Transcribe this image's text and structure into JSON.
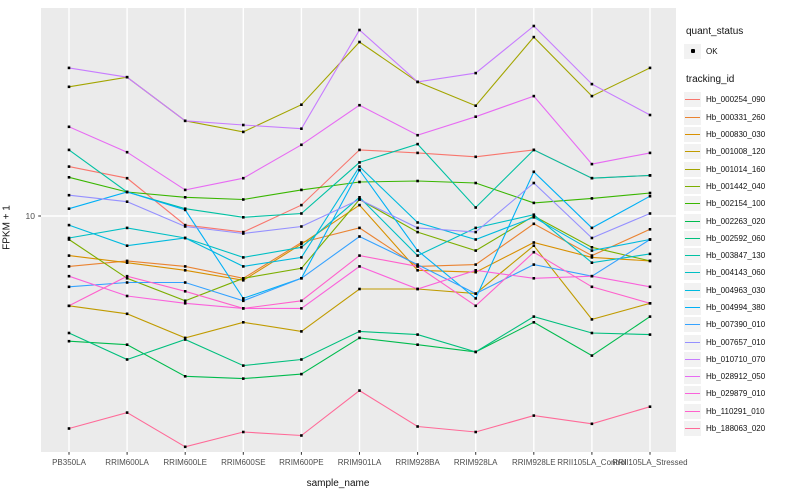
{
  "figure": {
    "background": "#FFFFFF",
    "panel_background": "#EBEBEB",
    "gridline_color": "#FFFFFF",
    "point_color": "#000000",
    "tick_text_color": "#4D4D4D"
  },
  "axes": {
    "x_title": "sample_name",
    "y_title": "FPKM + 1",
    "y_tick_label": "10"
  },
  "legend": {
    "quant_status_title": "quant_status",
    "quant_status_item": "OK",
    "tracking_id_title": "tracking_id"
  },
  "chart_data": {
    "type": "line",
    "title": "",
    "xlabel": "sample_name",
    "ylabel": "FPKM + 1",
    "y_scale": "log10",
    "y_tick_labels": [
      "10"
    ],
    "ylim_approx": [
      1.5,
      52
    ],
    "grid": "ggplot-gray",
    "legend_position": "right",
    "quant_status": "OK",
    "categories": [
      "PB350LA",
      "RRIM600LA",
      "RRIM600LE",
      "RRIM600SE",
      "RRIM600PE",
      "RRIM901LA",
      "RRIM928BA",
      "RRIM928LA",
      "RRIM928LE",
      "RRII105LA_Control",
      "RRII105LA_Stressed"
    ],
    "series": [
      {
        "name": "Hb_000254_090",
        "color": "#F8766D",
        "values": [
          14.8,
          13.5,
          9.3,
          8.8,
          10.9,
          16.9,
          16.5,
          16.0,
          16.9,
          13.5,
          13.8
        ]
      },
      {
        "name": "Hb_000331_260",
        "color": "#EA8331",
        "values": [
          6.7,
          7.0,
          6.7,
          6.1,
          8.1,
          9.1,
          6.7,
          6.8,
          9.4,
          7.3,
          9.0
        ]
      },
      {
        "name": "Hb_000830_030",
        "color": "#D89000",
        "values": [
          7.3,
          6.9,
          6.5,
          6.0,
          8.0,
          10.9,
          6.5,
          6.4,
          8.1,
          7.2,
          7.0
        ]
      },
      {
        "name": "Hb_001008_120",
        "color": "#C09B00",
        "values": [
          4.9,
          4.6,
          3.8,
          4.3,
          4.0,
          5.6,
          5.6,
          5.4,
          7.9,
          4.4,
          5.0
        ]
      },
      {
        "name": "Hb_001014_160",
        "color": "#A3A500",
        "values": [
          27.9,
          30.1,
          21.3,
          19.5,
          24.2,
          39.8,
          29.0,
          24.0,
          41.4,
          25.9,
          32.4
        ]
      },
      {
        "name": "Hb_001442_040",
        "color": "#7CAE00",
        "values": [
          8.3,
          6.1,
          5.1,
          6.1,
          6.6,
          11.4,
          8.8,
          7.6,
          10.0,
          7.8,
          7.0
        ]
      },
      {
        "name": "Hb_002154_100",
        "color": "#39B600",
        "values": [
          13.6,
          12.1,
          11.6,
          11.4,
          12.3,
          13.1,
          13.2,
          13.0,
          11.1,
          11.5,
          12.0
        ]
      },
      {
        "name": "Hb_002263_020",
        "color": "#00BB4E",
        "values": [
          3.7,
          3.6,
          2.8,
          2.75,
          2.85,
          3.8,
          3.6,
          3.4,
          4.3,
          3.3,
          4.5
        ]
      },
      {
        "name": "Hb_002592_060",
        "color": "#00BF7D",
        "values": [
          3.95,
          3.2,
          3.75,
          3.05,
          3.2,
          4.0,
          3.9,
          3.4,
          4.5,
          3.95,
          3.9
        ]
      },
      {
        "name": "Hb_003847_130",
        "color": "#00C1A3",
        "values": [
          16.9,
          12.1,
          10.6,
          9.9,
          10.2,
          15.3,
          17.7,
          10.7,
          16.9,
          13.5,
          13.8
        ]
      },
      {
        "name": "Hb_004143_060",
        "color": "#00BFC4",
        "values": [
          8.4,
          9.1,
          8.4,
          7.2,
          7.8,
          11.6,
          7.3,
          9.1,
          10.1,
          6.9,
          7.4
        ]
      },
      {
        "name": "Hb_004963_030",
        "color": "#00BADE",
        "values": [
          9.3,
          7.9,
          8.4,
          6.7,
          7.2,
          14.8,
          9.5,
          8.3,
          9.9,
          7.6,
          8.3
        ]
      },
      {
        "name": "Hb_004994_380",
        "color": "#00B0F6",
        "values": [
          10.6,
          12.1,
          10.5,
          5.2,
          6.1,
          14.4,
          7.6,
          5.2,
          14.2,
          9.1,
          11.7
        ]
      },
      {
        "name": "Hb_007390_010",
        "color": "#35A2FF",
        "values": [
          5.7,
          5.9,
          5.9,
          5.1,
          6.1,
          8.5,
          6.8,
          5.4,
          6.8,
          6.2,
          8.3
        ]
      },
      {
        "name": "Hb_007657_010",
        "color": "#9590FF",
        "values": [
          11.8,
          11.2,
          9.2,
          8.7,
          9.2,
          11.4,
          9.1,
          8.8,
          13.0,
          8.4,
          10.2
        ]
      },
      {
        "name": "Hb_010710_070",
        "color": "#C77CFF",
        "values": [
          32.4,
          30.1,
          21.3,
          20.6,
          20.0,
          43.8,
          29.0,
          31.1,
          45.2,
          28.5,
          22.3
        ]
      },
      {
        "name": "Hb_028912_050",
        "color": "#E76BF3",
        "values": [
          20.3,
          16.6,
          12.3,
          13.5,
          17.6,
          24.1,
          19.0,
          22.0,
          25.9,
          15.1,
          16.5
        ]
      },
      {
        "name": "Hb_029879_010",
        "color": "#FA62DB",
        "values": [
          6.2,
          5.3,
          5.0,
          4.8,
          4.8,
          6.7,
          5.6,
          6.5,
          6.1,
          6.2,
          5.7
        ]
      },
      {
        "name": "Hb_110291_010",
        "color": "#FF61CC",
        "values": [
          4.9,
          6.2,
          5.5,
          4.8,
          5.1,
          7.3,
          6.7,
          4.9,
          7.5,
          5.7,
          5.0
        ]
      },
      {
        "name": "Hb_188063_020",
        "color": "#FF6A98",
        "values": [
          1.85,
          2.1,
          1.6,
          1.8,
          1.75,
          2.5,
          1.88,
          1.8,
          2.05,
          1.92,
          2.2
        ]
      }
    ]
  }
}
